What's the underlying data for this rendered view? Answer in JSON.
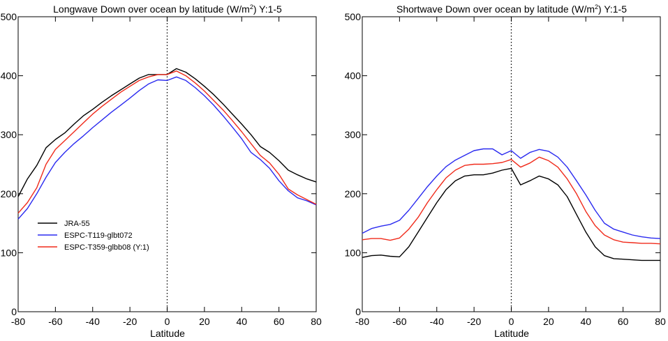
{
  "chart_data": [
    {
      "type": "line",
      "title": "Longwave Down over ocean by latitude (W/m",
      "title_sup": "2",
      "title_suffix": ") Y:1-5",
      "xlabel": "Latitude",
      "ylabel": "",
      "xlim": [
        -80,
        80
      ],
      "ylim": [
        0,
        500
      ],
      "xticks": [
        "-80",
        "-60",
        "-40",
        "-20",
        "0",
        "20",
        "40",
        "60",
        "80"
      ],
      "yticks": [
        "0",
        "100",
        "200",
        "300",
        "400",
        "500"
      ],
      "grid": false,
      "legend": "bottom-left",
      "reference_line": {
        "x": 0,
        "style": "dotted"
      },
      "x": [
        -80,
        -75,
        -70,
        -65,
        -60,
        -55,
        -50,
        -45,
        -40,
        -35,
        -30,
        -25,
        -20,
        -15,
        -10,
        -5,
        0,
        5,
        10,
        15,
        20,
        25,
        30,
        35,
        40,
        45,
        50,
        55,
        60,
        65,
        70,
        75,
        80
      ],
      "series": [
        {
          "name": "JRA-55",
          "color": "#000000",
          "values": [
            195,
            225,
            248,
            278,
            292,
            303,
            318,
            332,
            343,
            355,
            366,
            376,
            386,
            396,
            402,
            402,
            402,
            412,
            406,
            395,
            382,
            368,
            352,
            335,
            318,
            300,
            280,
            270,
            256,
            240,
            232,
            225,
            220
          ]
        },
        {
          "name": "ESPC-T119-glbt072",
          "color": "#2a2af0",
          "values": [
            157,
            175,
            200,
            228,
            253,
            270,
            285,
            298,
            312,
            325,
            338,
            350,
            362,
            375,
            386,
            393,
            392,
            398,
            392,
            380,
            366,
            350,
            332,
            313,
            293,
            270,
            258,
            243,
            222,
            205,
            193,
            188,
            181
          ]
        },
        {
          "name": "ESPC-T359-glbb08 (Y:1)",
          "color": "#f02a1a",
          "values": [
            167,
            185,
            210,
            250,
            275,
            290,
            305,
            320,
            335,
            348,
            360,
            372,
            382,
            392,
            398,
            402,
            402,
            408,
            400,
            388,
            374,
            358,
            342,
            324,
            305,
            285,
            265,
            252,
            233,
            208,
            198,
            190,
            182
          ]
        }
      ]
    },
    {
      "type": "line",
      "title": "Shortwave Down over ocean by latitude (W/m",
      "title_sup": "2",
      "title_suffix": ") Y:1-5",
      "xlabel": "Latitude",
      "ylabel": "",
      "xlim": [
        -80,
        80
      ],
      "ylim": [
        0,
        500
      ],
      "xticks": [
        "-80",
        "-60",
        "-40",
        "-20",
        "0",
        "20",
        "40",
        "60",
        "80"
      ],
      "yticks": [
        "0",
        "100",
        "200",
        "300",
        "400",
        "500"
      ],
      "grid": false,
      "reference_line": {
        "x": 0,
        "style": "dotted"
      },
      "x": [
        -80,
        -75,
        -70,
        -65,
        -60,
        -55,
        -50,
        -45,
        -40,
        -35,
        -30,
        -25,
        -20,
        -15,
        -10,
        -5,
        0,
        5,
        10,
        15,
        20,
        25,
        30,
        35,
        40,
        45,
        50,
        55,
        60,
        65,
        70,
        75,
        80
      ],
      "series": [
        {
          "name": "JRA-55",
          "color": "#000000",
          "values": [
            92,
            95,
            96,
            94,
            93,
            110,
            135,
            160,
            185,
            207,
            222,
            230,
            232,
            232,
            235,
            240,
            243,
            215,
            222,
            230,
            225,
            215,
            195,
            165,
            135,
            110,
            95,
            90,
            89,
            88,
            87,
            87,
            87
          ]
        },
        {
          "name": "ESPC-T119-glbt072",
          "color": "#2a2af0",
          "values": [
            133,
            141,
            145,
            148,
            155,
            172,
            192,
            212,
            230,
            246,
            257,
            265,
            273,
            276,
            276,
            266,
            273,
            260,
            270,
            275,
            272,
            262,
            245,
            222,
            198,
            172,
            150,
            140,
            135,
            130,
            127,
            125,
            124
          ]
        },
        {
          "name": "ESPC-T359-glbb08 (Y:1)",
          "color": "#f02a1a",
          "values": [
            122,
            124,
            124,
            121,
            125,
            140,
            160,
            185,
            207,
            227,
            240,
            248,
            250,
            250,
            251,
            253,
            258,
            245,
            252,
            262,
            256,
            245,
            225,
            200,
            170,
            146,
            130,
            122,
            118,
            117,
            116,
            116,
            115
          ]
        }
      ]
    }
  ]
}
